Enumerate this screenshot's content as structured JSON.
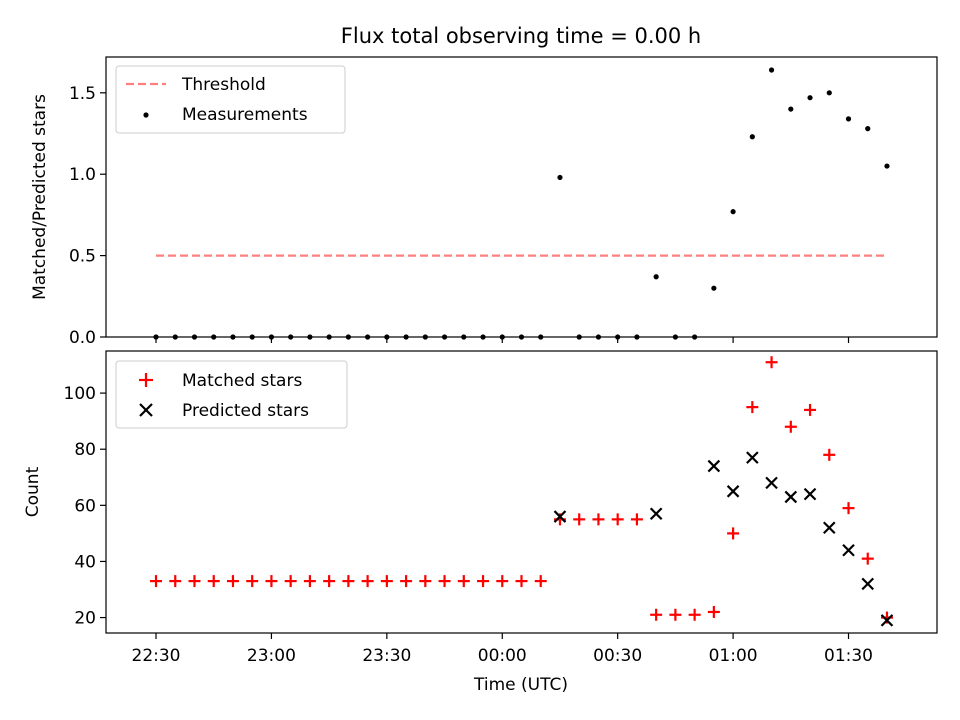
{
  "chart_data": [
    {
      "type": "scatter",
      "title": "Flux total observing time = 0.00 h",
      "xlabel": "",
      "ylabel": "Matched/Predicted stars",
      "ylim": [
        0,
        1.72
      ],
      "yticks": [
        "0.0",
        "0.5",
        "1.0",
        "1.5"
      ],
      "yticks_values": [
        0,
        0.5,
        1.0,
        1.5
      ],
      "legend_position": "top-left",
      "threshold": {
        "name": "Threshold",
        "value": 0.5,
        "x_range": [
          "22:30",
          "01:40"
        ],
        "color": "#ff7f7f"
      },
      "series": [
        {
          "name": "Measurements",
          "color": "#000000",
          "x": [
            "22:30",
            "22:35",
            "22:40",
            "22:45",
            "22:50",
            "22:55",
            "23:00",
            "23:05",
            "23:10",
            "23:15",
            "23:20",
            "23:25",
            "23:30",
            "23:35",
            "23:40",
            "23:45",
            "23:50",
            "23:55",
            "00:00",
            "00:05",
            "00:10",
            "00:15",
            "00:20",
            "00:25",
            "00:30",
            "00:35",
            "00:40",
            "00:45",
            "00:50",
            "00:55",
            "01:00",
            "01:05",
            "01:10",
            "01:15",
            "01:20",
            "01:25",
            "01:30",
            "01:35",
            "01:40"
          ],
          "values": [
            0,
            0,
            0,
            0,
            0,
            0,
            0,
            0,
            0,
            0,
            0,
            0,
            0,
            0,
            0,
            0,
            0,
            0,
            0,
            0,
            0,
            0.98,
            0,
            0,
            0,
            0,
            0.37,
            0,
            0,
            0.3,
            0.77,
            1.23,
            1.64,
            1.4,
            1.47,
            1.5,
            1.34,
            1.28,
            1.05
          ]
        }
      ]
    },
    {
      "type": "scatter",
      "title": "",
      "xlabel": "Time (UTC)",
      "ylabel": "Count",
      "ylim": [
        14.5,
        115
      ],
      "yticks": [
        "20",
        "40",
        "60",
        "80",
        "100"
      ],
      "yticks_values": [
        20,
        40,
        60,
        80,
        100
      ],
      "xlim": [
        "22:17",
        "01:53"
      ],
      "xticks": [
        "22:30",
        "23:00",
        "23:30",
        "00:00",
        "00:30",
        "01:00",
        "01:30"
      ],
      "legend_position": "top-left",
      "series": [
        {
          "name": "Matched stars",
          "marker": "plus",
          "color": "#ff0000",
          "x": [
            "22:30",
            "22:35",
            "22:40",
            "22:45",
            "22:50",
            "22:55",
            "23:00",
            "23:05",
            "23:10",
            "23:15",
            "23:20",
            "23:25",
            "23:30",
            "23:35",
            "23:40",
            "23:45",
            "23:50",
            "23:55",
            "00:00",
            "00:05",
            "00:10",
            "00:15",
            "00:20",
            "00:25",
            "00:30",
            "00:35",
            "00:40",
            "00:45",
            "00:50",
            "00:55",
            "01:00",
            "01:05",
            "01:10",
            "01:15",
            "01:20",
            "01:25",
            "01:30",
            "01:35",
            "01:40"
          ],
          "values": [
            33,
            33,
            33,
            33,
            33,
            33,
            33,
            33,
            33,
            33,
            33,
            33,
            33,
            33,
            33,
            33,
            33,
            33,
            33,
            33,
            33,
            55,
            55,
            55,
            55,
            55,
            21,
            21,
            21,
            22,
            50,
            95,
            111,
            88,
            94,
            78,
            59,
            41,
            20
          ]
        },
        {
          "name": "Predicted stars",
          "marker": "x",
          "color": "#000000",
          "x": [
            "00:15",
            "00:40",
            "00:55",
            "01:00",
            "01:05",
            "01:10",
            "01:15",
            "01:20",
            "01:25",
            "01:30",
            "01:35",
            "01:40"
          ],
          "values": [
            56,
            57,
            74,
            65,
            77,
            68,
            63,
            64,
            52,
            44,
            32,
            19
          ]
        }
      ]
    }
  ]
}
